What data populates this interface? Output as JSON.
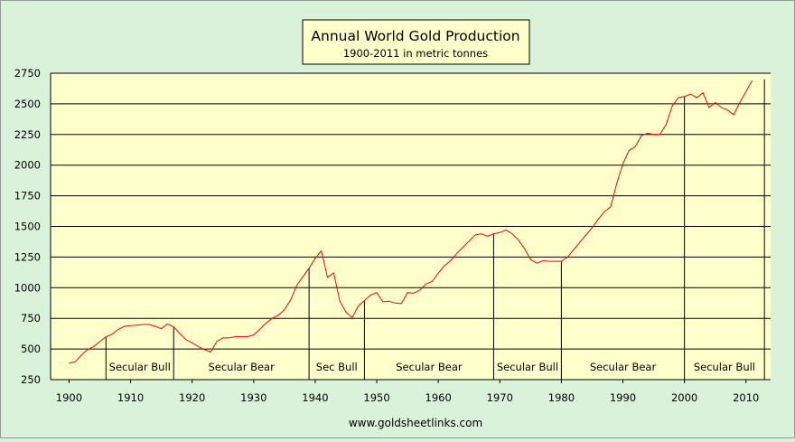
{
  "chart_data": {
    "type": "line",
    "title": "Annual World Gold Production",
    "subtitle": "1900-2011 in metric tonnes",
    "source": "www.goldsheetlinks.com",
    "xlabel": "",
    "ylabel": "",
    "xlim": [
      1897,
      2014
    ],
    "ylim": [
      250,
      2750
    ],
    "x_ticks": [
      1900,
      1910,
      1920,
      1930,
      1940,
      1950,
      1960,
      1970,
      1980,
      1990,
      2000,
      2010
    ],
    "y_ticks": [
      250,
      500,
      750,
      1000,
      1250,
      1500,
      1750,
      2000,
      2250,
      2500,
      2750
    ],
    "grid": "horizontal",
    "colors": {
      "background": "#d9f2d9",
      "plot_area": "#ffffcc",
      "line": "#ff0000",
      "gridline": "#000000",
      "title_box": "#ffffcc"
    },
    "series": [
      {
        "values": [
          [
            1900,
            385
          ],
          [
            1901,
            395
          ],
          [
            1902,
            450
          ],
          [
            1903,
            495
          ],
          [
            1904,
            520
          ],
          [
            1905,
            560
          ],
          [
            1906,
            600
          ],
          [
            1907,
            620
          ],
          [
            1908,
            660
          ],
          [
            1909,
            685
          ],
          [
            1910,
            690
          ],
          [
            1911,
            695
          ],
          [
            1912,
            700
          ],
          [
            1913,
            700
          ],
          [
            1914,
            685
          ],
          [
            1915,
            665
          ],
          [
            1916,
            705
          ],
          [
            1917,
            680
          ],
          [
            1918,
            625
          ],
          [
            1919,
            575
          ],
          [
            1920,
            550
          ],
          [
            1921,
            520
          ],
          [
            1922,
            495
          ],
          [
            1923,
            475
          ],
          [
            1924,
            560
          ],
          [
            1925,
            590
          ],
          [
            1926,
            590
          ],
          [
            1927,
            600
          ],
          [
            1928,
            600
          ],
          [
            1929,
            600
          ],
          [
            1930,
            615
          ],
          [
            1931,
            660
          ],
          [
            1932,
            710
          ],
          [
            1933,
            750
          ],
          [
            1934,
            775
          ],
          [
            1935,
            820
          ],
          [
            1936,
            900
          ],
          [
            1937,
            1020
          ],
          [
            1938,
            1090
          ],
          [
            1939,
            1160
          ],
          [
            1940,
            1240
          ],
          [
            1941,
            1300
          ],
          [
            1942,
            1085
          ],
          [
            1943,
            1120
          ],
          [
            1944,
            890
          ],
          [
            1945,
            800
          ],
          [
            1946,
            755
          ],
          [
            1947,
            850
          ],
          [
            1948,
            895
          ],
          [
            1949,
            940
          ],
          [
            1950,
            960
          ],
          [
            1951,
            885
          ],
          [
            1952,
            890
          ],
          [
            1953,
            875
          ],
          [
            1954,
            870
          ],
          [
            1955,
            960
          ],
          [
            1956,
            955
          ],
          [
            1957,
            980
          ],
          [
            1958,
            1030
          ],
          [
            1959,
            1050
          ],
          [
            1960,
            1120
          ],
          [
            1961,
            1180
          ],
          [
            1962,
            1220
          ],
          [
            1963,
            1280
          ],
          [
            1964,
            1330
          ],
          [
            1965,
            1380
          ],
          [
            1966,
            1430
          ],
          [
            1967,
            1440
          ],
          [
            1968,
            1420
          ],
          [
            1969,
            1440
          ],
          [
            1970,
            1450
          ],
          [
            1971,
            1470
          ],
          [
            1972,
            1440
          ],
          [
            1973,
            1390
          ],
          [
            1974,
            1320
          ],
          [
            1975,
            1230
          ],
          [
            1976,
            1200
          ],
          [
            1977,
            1220
          ],
          [
            1978,
            1215
          ],
          [
            1979,
            1215
          ],
          [
            1980,
            1215
          ],
          [
            1981,
            1250
          ],
          [
            1982,
            1310
          ],
          [
            1983,
            1370
          ],
          [
            1984,
            1430
          ],
          [
            1985,
            1490
          ],
          [
            1986,
            1560
          ],
          [
            1987,
            1620
          ],
          [
            1988,
            1660
          ],
          [
            1989,
            1850
          ],
          [
            1990,
            2010
          ],
          [
            1991,
            2120
          ],
          [
            1992,
            2150
          ],
          [
            1993,
            2240
          ],
          [
            1994,
            2260
          ],
          [
            1995,
            2250
          ],
          [
            1996,
            2250
          ],
          [
            1997,
            2330
          ],
          [
            1998,
            2480
          ],
          [
            1999,
            2550
          ],
          [
            2000,
            2560
          ],
          [
            2001,
            2580
          ],
          [
            2002,
            2550
          ],
          [
            2003,
            2590
          ],
          [
            2004,
            2470
          ],
          [
            2005,
            2510
          ],
          [
            2006,
            2470
          ],
          [
            2007,
            2450
          ],
          [
            2008,
            2410
          ],
          [
            2009,
            2510
          ],
          [
            2010,
            2600
          ],
          [
            2011,
            2690
          ]
        ]
      }
    ],
    "dividers": [
      1906,
      1917,
      1939,
      1948,
      1969,
      1980,
      2000,
      2013
    ],
    "annotations": [
      {
        "label": "Secular Bull",
        "x": 1911.5
      },
      {
        "label": "Secular Bear",
        "x": 1928
      },
      {
        "label": "Sec  Bull",
        "x": 1943.5
      },
      {
        "label": "Secular Bear",
        "x": 1958.5
      },
      {
        "label": "Secular Bull",
        "x": 1974.5
      },
      {
        "label": "Secular Bear",
        "x": 1990
      },
      {
        "label": "Secular Bull",
        "x": 2006.5
      }
    ]
  }
}
